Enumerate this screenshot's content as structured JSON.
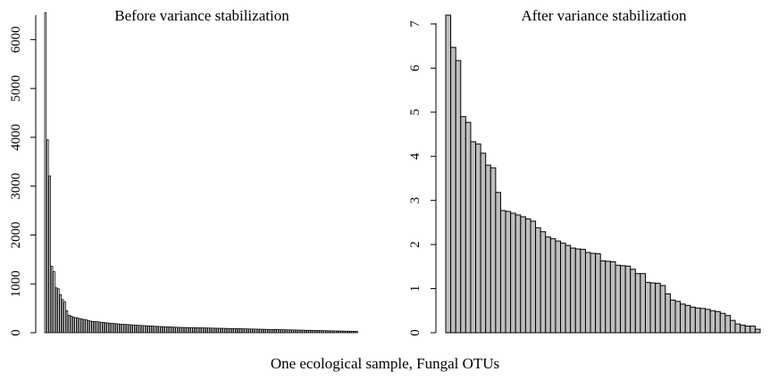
{
  "figure": {
    "xlabel": "One ecological sample, Fungal OTUs"
  },
  "chart_data": [
    {
      "type": "bar",
      "title": "Before variance stabilization",
      "xlabel": "",
      "ylabel": "",
      "ylim": [
        0,
        6500
      ],
      "yticks": [
        0,
        1000,
        2000,
        3000,
        4000,
        5000,
        6000
      ],
      "bar_fill": "#ffffff",
      "bar_stroke": "#000000",
      "values": [
        6550,
        3950,
        3210,
        1360,
        1250,
        920,
        900,
        780,
        680,
        630,
        450,
        360,
        340,
        320,
        310,
        300,
        290,
        280,
        270,
        265,
        250,
        240,
        230,
        228,
        225,
        220,
        215,
        210,
        205,
        200,
        195,
        190,
        188,
        185,
        180,
        175,
        172,
        170,
        168,
        165,
        160,
        158,
        155,
        152,
        150,
        148,
        145,
        142,
        140,
        138,
        135,
        132,
        130,
        128,
        126,
        124,
        122,
        120,
        118,
        116,
        114,
        112,
        110,
        109,
        108,
        107,
        106,
        105,
        104,
        103,
        102,
        101,
        100,
        99,
        98,
        97,
        96,
        95,
        94,
        93,
        92,
        91,
        90,
        89,
        88,
        87,
        86,
        85,
        84,
        83,
        82,
        81,
        80,
        79,
        78,
        77,
        76,
        75,
        74,
        73,
        72,
        71,
        70,
        69,
        68,
        67,
        66,
        65,
        64,
        63,
        62,
        61,
        60,
        59,
        58,
        57,
        56,
        55,
        54,
        53,
        52,
        51,
        50,
        49,
        48,
        47,
        46,
        45,
        44,
        43,
        42,
        41,
        40,
        39,
        38,
        37,
        36,
        35,
        34,
        33,
        32,
        31,
        30,
        29,
        28,
        27
      ]
    },
    {
      "type": "bar",
      "title": "After variance stabilization",
      "xlabel": "",
      "ylabel": "",
      "ylim": [
        0,
        7.2
      ],
      "yticks": [
        0,
        1,
        2,
        3,
        4,
        5,
        6,
        7
      ],
      "bar_fill": "#bebebe",
      "bar_stroke": "#000000",
      "values": [
        7.2,
        6.47,
        6.17,
        4.9,
        4.77,
        4.33,
        4.28,
        4.07,
        3.8,
        3.74,
        3.18,
        2.77,
        2.75,
        2.71,
        2.67,
        2.63,
        2.58,
        2.53,
        2.38,
        2.29,
        2.17,
        2.13,
        2.08,
        2.03,
        1.98,
        1.92,
        1.9,
        1.89,
        1.82,
        1.8,
        1.79,
        1.63,
        1.62,
        1.61,
        1.53,
        1.52,
        1.51,
        1.44,
        1.34,
        1.34,
        1.14,
        1.13,
        1.12,
        1.07,
        0.88,
        0.74,
        0.71,
        0.65,
        0.62,
        0.58,
        0.56,
        0.55,
        0.53,
        0.5,
        0.48,
        0.44,
        0.39,
        0.28,
        0.2,
        0.17,
        0.15,
        0.15,
        0.08
      ]
    }
  ]
}
